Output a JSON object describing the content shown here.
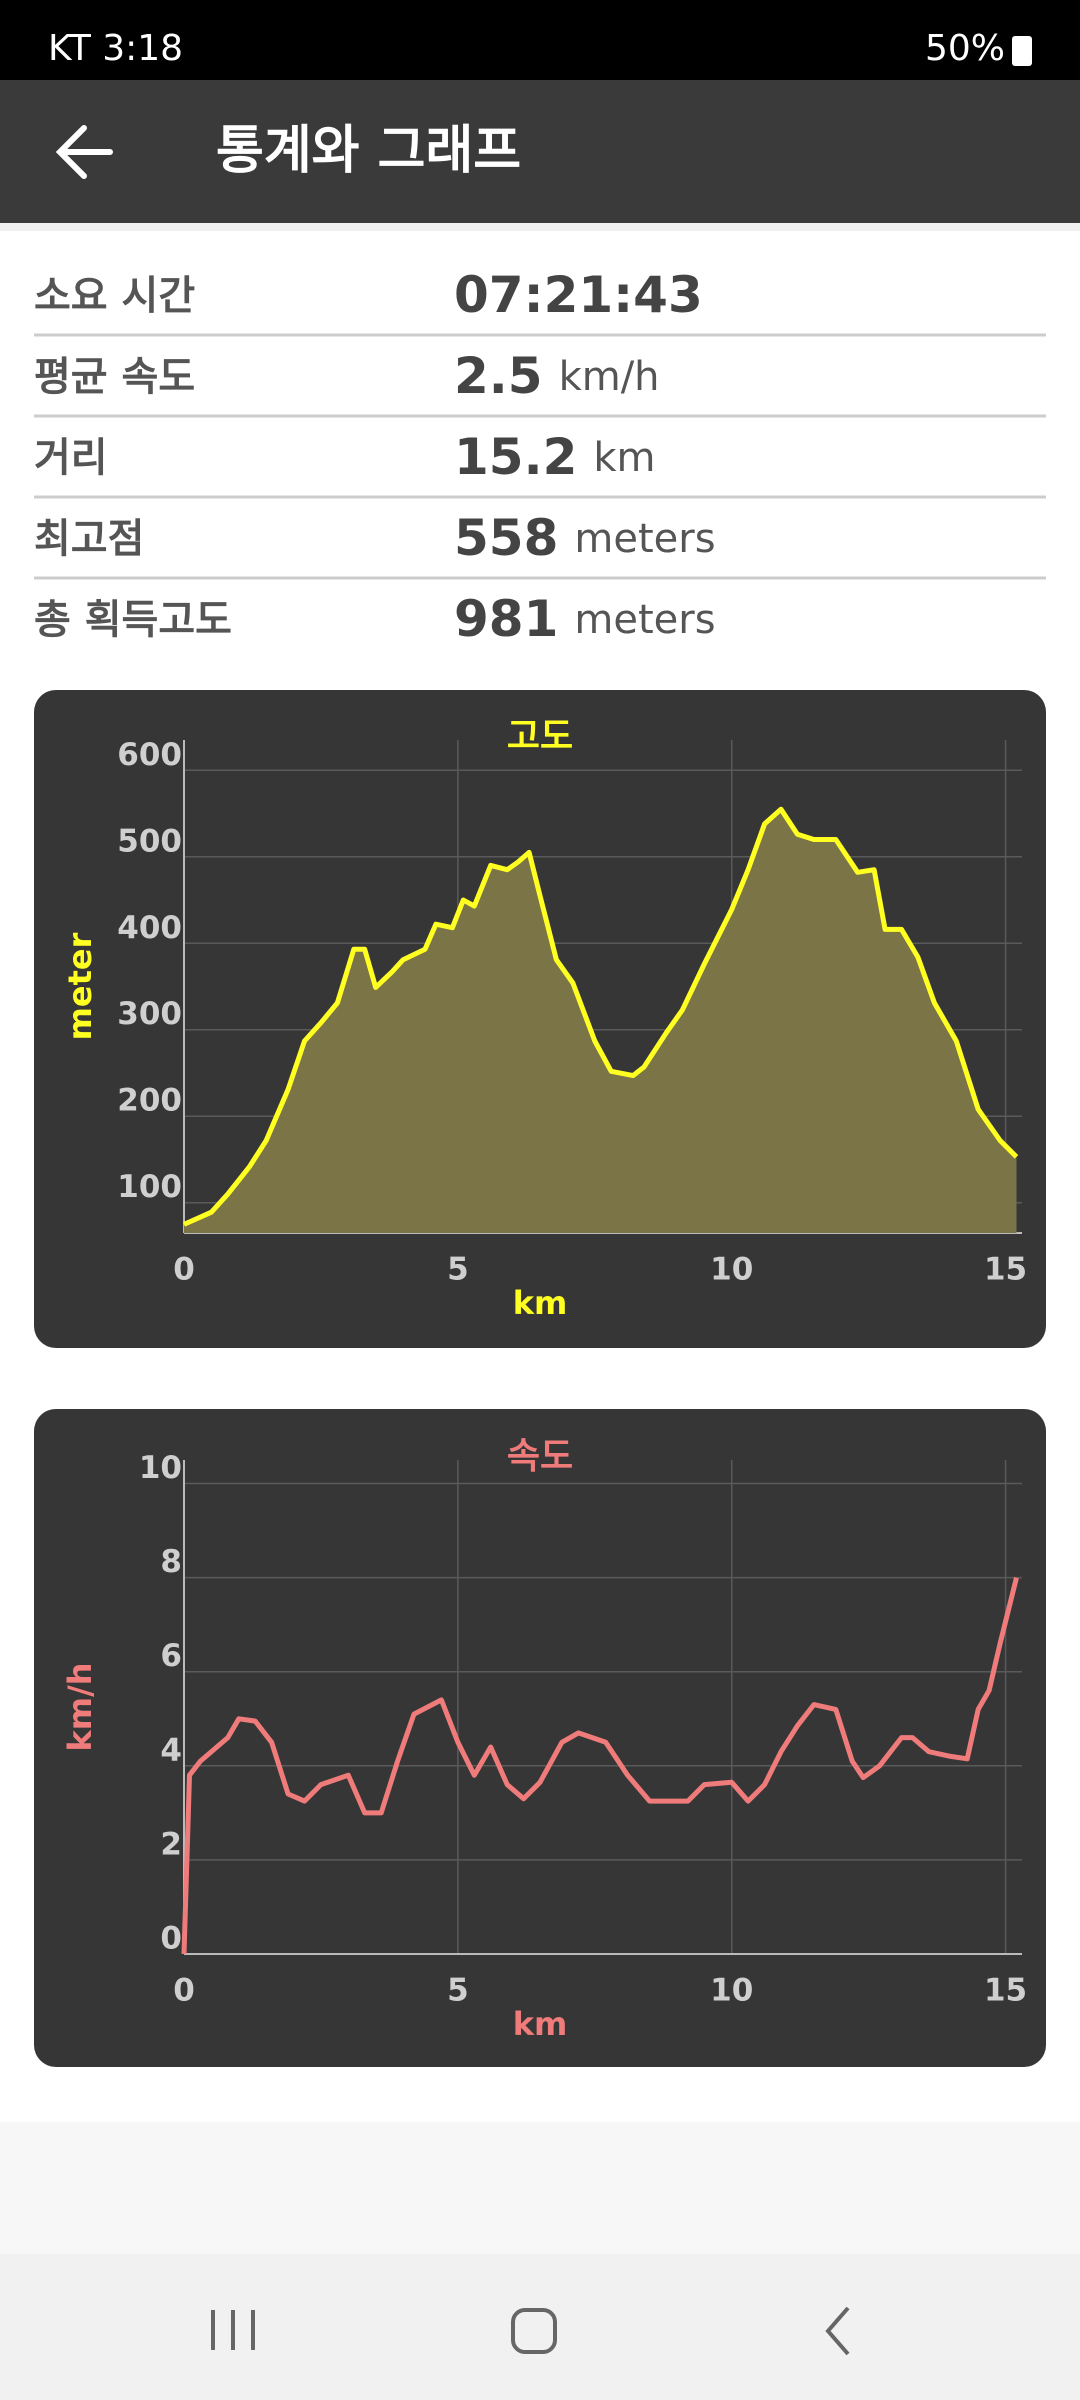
{
  "status_bar": {
    "left": "KT 3:18",
    "battery": "50%"
  },
  "header": {
    "title": "통계와 그래프"
  },
  "stats": [
    {
      "label": "소요 시간",
      "value": "07:21:43"
    },
    {
      "label": "평균 속도",
      "value": "2.5",
      "unit": "km/h"
    },
    {
      "label": "거리",
      "value": "15.2",
      "unit": "km"
    },
    {
      "label": "최고점",
      "value": "558",
      "unit": "meters"
    },
    {
      "label": "총 획득고도",
      "value": "981",
      "unit": "meters"
    }
  ],
  "chart_data": [
    {
      "type": "line",
      "title": "고도",
      "xlabel": "km",
      "ylabel": "meter",
      "fill": true,
      "grid": true,
      "x": [
        0,
        0.5,
        0.8,
        1.2,
        1.5,
        1.9,
        2.2,
        2.5,
        2.8,
        3.1,
        3.3,
        3.5,
        3.8,
        4.0,
        4.4,
        4.6,
        4.9,
        5.1,
        5.3,
        5.6,
        5.9,
        6.1,
        6.3,
        6.5,
        6.8,
        7.1,
        7.5,
        7.8,
        8.2,
        8.4,
        8.8,
        9.1,
        9.5,
        10.0,
        10.3,
        10.6,
        10.9,
        11.2,
        11.5,
        11.9,
        12.3,
        12.6,
        12.8,
        13.1,
        13.4,
        13.7,
        14.1,
        14.5,
        14.9,
        15.2
      ],
      "series": [
        {
          "color": "#ffff22",
          "fill_color": "#7a7446",
          "values": [
            75,
            89,
            110,
            142,
            172,
            231,
            287,
            308,
            331,
            393,
            393,
            349,
            367,
            381,
            393,
            422,
            418,
            450,
            443,
            490,
            485,
            494,
            505,
            455,
            381,
            354,
            287,
            252,
            247,
            257,
            296,
            323,
            376,
            439,
            485,
            538,
            555,
            526,
            520,
            520,
            482,
            485,
            416,
            416,
            384,
            331,
            287,
            208,
            172,
            153
          ]
        }
      ],
      "xlim": [
        0,
        15.3
      ],
      "xticks": [
        0,
        5,
        10,
        15
      ],
      "ylim": [
        65,
        635
      ],
      "yticks": [
        100,
        200,
        300,
        400,
        500,
        600
      ]
    },
    {
      "type": "line",
      "title": "속도",
      "xlabel": "km",
      "ylabel": "km/h",
      "fill": false,
      "grid": true,
      "x": [
        0,
        0.1,
        0.3,
        0.8,
        1.0,
        1.3,
        1.6,
        1.9,
        2.2,
        2.5,
        3.0,
        3.3,
        3.6,
        3.9,
        4.2,
        4.7,
        5.0,
        5.3,
        5.6,
        5.9,
        6.2,
        6.5,
        6.9,
        7.2,
        7.7,
        8.1,
        8.5,
        9.2,
        9.5,
        10.0,
        10.3,
        10.6,
        10.9,
        11.2,
        11.5,
        11.9,
        12.2,
        12.4,
        12.7,
        13.1,
        13.3,
        13.6,
        14.0,
        14.3,
        14.5,
        14.7,
        14.9,
        15.2
      ],
      "series": [
        {
          "color": "#f07b7b",
          "values": [
            0,
            3.8,
            4.1,
            4.6,
            5.0,
            4.95,
            4.5,
            3.4,
            3.25,
            3.6,
            3.8,
            3.0,
            3.0,
            4.1,
            5.1,
            5.4,
            4.5,
            3.8,
            4.4,
            3.6,
            3.3,
            3.65,
            4.5,
            4.7,
            4.5,
            3.8,
            3.25,
            3.25,
            3.6,
            3.65,
            3.25,
            3.6,
            4.3,
            4.85,
            5.3,
            5.2,
            4.1,
            3.75,
            4.0,
            4.6,
            4.6,
            4.3,
            4.2,
            4.15,
            5.2,
            5.6,
            6.6,
            8.0
          ]
        }
      ],
      "xlim": [
        0,
        15.3
      ],
      "xticks": [
        0,
        5,
        10,
        15
      ],
      "ylim": [
        0,
        10.5
      ],
      "yticks": [
        0,
        2,
        4,
        6,
        8,
        10
      ]
    }
  ]
}
